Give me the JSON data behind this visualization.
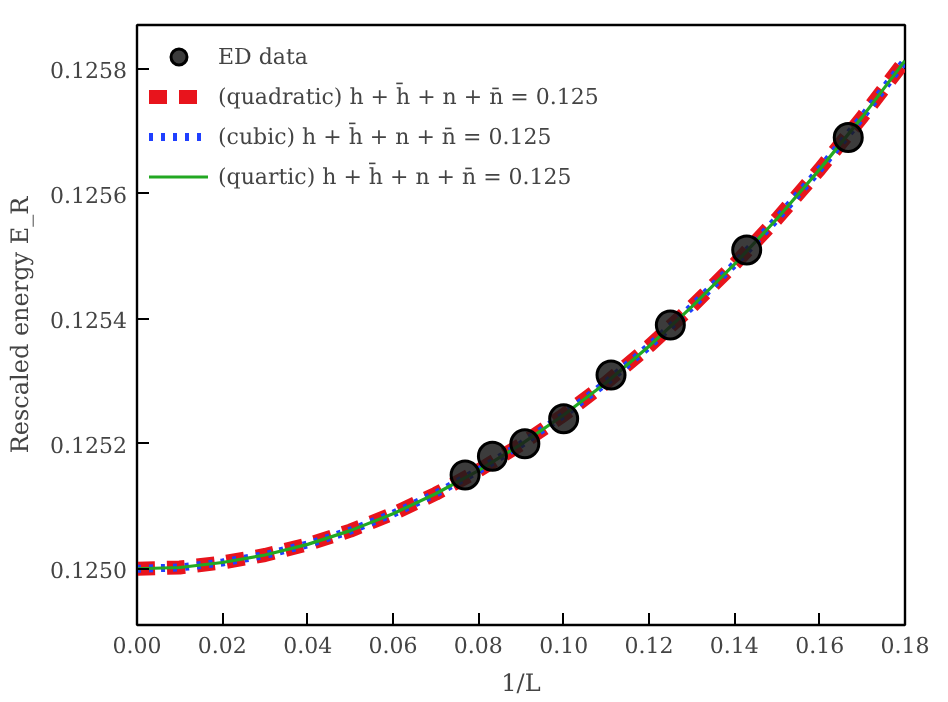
{
  "chart_data": {
    "type": "line",
    "xlabel": "1/L",
    "ylabel": "Rescaled energy E_R",
    "xlim": [
      0,
      0.18
    ],
    "ylim": [
      0.12491,
      0.12587
    ],
    "xticks": [
      {
        "value": 0,
        "label": "0.00"
      },
      {
        "value": 0.02,
        "label": "0.02"
      },
      {
        "value": 0.04,
        "label": "0.04"
      },
      {
        "value": 0.06,
        "label": "0.06"
      },
      {
        "value": 0.08,
        "label": "0.08"
      },
      {
        "value": 0.1,
        "label": "0.10"
      },
      {
        "value": 0.12,
        "label": "0.12"
      },
      {
        "value": 0.14,
        "label": "0.14"
      },
      {
        "value": 0.16,
        "label": "0.16"
      },
      {
        "value": 0.18,
        "label": "0.18"
      }
    ],
    "yticks": [
      {
        "value": 0.125,
        "label": "0.1250"
      },
      {
        "value": 0.1252,
        "label": "0.1252"
      },
      {
        "value": 0.1254,
        "label": "0.1254"
      },
      {
        "value": 0.1256,
        "label": "0.1256"
      },
      {
        "value": 0.1258,
        "label": "0.1258"
      }
    ],
    "legend": "top left",
    "grid": false,
    "series": [
      {
        "name": "ED data",
        "type": "scatter",
        "marker": "circle",
        "color": "#1a1a1a",
        "x": [
          0.0769,
          0.0833,
          0.0909,
          0.1,
          0.1111,
          0.125,
          0.1429,
          0.1667
        ],
        "values": [
          0.12515,
          0.12518,
          0.1252,
          0.12524,
          0.12531,
          0.12539,
          0.12551,
          0.12569
        ]
      },
      {
        "name": "(quadratic) h + h̄ + n + n̄ = 0.125",
        "line_style": "dashed",
        "color": "#e8141c",
        "x": [
          0,
          0.01,
          0.02,
          0.03,
          0.04,
          0.05,
          0.06,
          0.07,
          0.08,
          0.09,
          0.1,
          0.11,
          0.12,
          0.13,
          0.14,
          0.15,
          0.16,
          0.17,
          0.18
        ],
        "values": [
          0.125,
          0.125002,
          0.12501,
          0.125022,
          0.125039,
          0.125061,
          0.125088,
          0.12512,
          0.125157,
          0.125199,
          0.125246,
          0.125298,
          0.125356,
          0.125419,
          0.125487,
          0.12556,
          0.125639,
          0.125723,
          0.125813
        ]
      },
      {
        "name": "(cubic) h + h̄ + n + n̄ = 0.125",
        "line_style": "dotted",
        "color": "#1f3fff",
        "x": [
          0,
          0.01,
          0.02,
          0.03,
          0.04,
          0.05,
          0.06,
          0.07,
          0.08,
          0.09,
          0.1,
          0.11,
          0.12,
          0.13,
          0.14,
          0.15,
          0.16,
          0.17,
          0.18
        ],
        "values": [
          0.125,
          0.125002,
          0.12501,
          0.125022,
          0.125039,
          0.125061,
          0.125088,
          0.12512,
          0.125157,
          0.125199,
          0.125246,
          0.125298,
          0.125356,
          0.125419,
          0.125487,
          0.12556,
          0.125639,
          0.125723,
          0.125813
        ]
      },
      {
        "name": "(quartic) h + h̄ + n + n̄ = 0.125",
        "line_style": "solid",
        "color": "#22a822",
        "x": [
          0,
          0.01,
          0.02,
          0.03,
          0.04,
          0.05,
          0.06,
          0.07,
          0.08,
          0.09,
          0.1,
          0.11,
          0.12,
          0.13,
          0.14,
          0.15,
          0.16,
          0.17,
          0.18
        ],
        "values": [
          0.125,
          0.125002,
          0.12501,
          0.125022,
          0.125039,
          0.125061,
          0.125088,
          0.12512,
          0.125157,
          0.125199,
          0.125246,
          0.125298,
          0.125356,
          0.125419,
          0.125487,
          0.12556,
          0.125639,
          0.125723,
          0.125813
        ]
      }
    ]
  }
}
